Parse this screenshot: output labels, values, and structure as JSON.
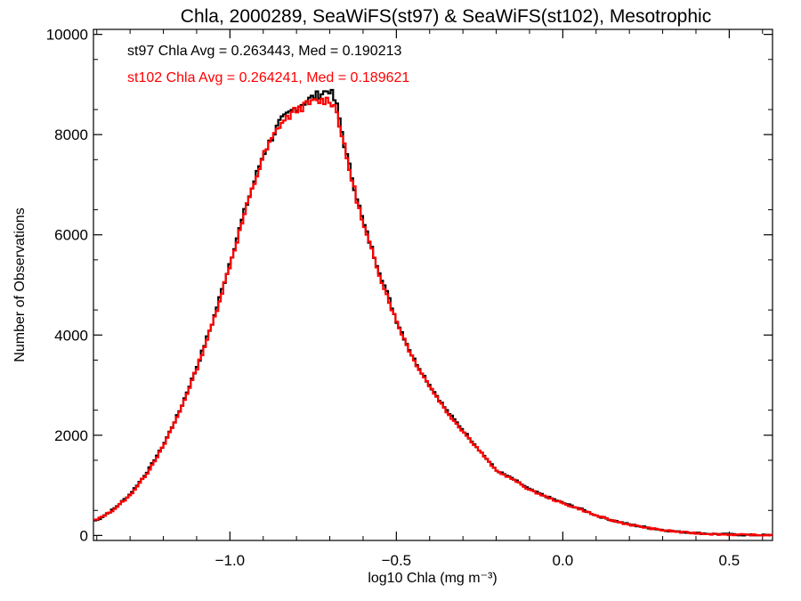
{
  "chart_data": {
    "type": "line",
    "title": "Chla, 2000289, SeaWiFS(st97) & SeaWiFS(st102), Mesotrophic",
    "xlabel": "log10 Chla (mg m⁻³)",
    "ylabel": "Number of Observations",
    "xlim": [
      -1.41,
      0.63
    ],
    "ylim": [
      -100,
      10100
    ],
    "x_ticks": [
      -1.0,
      -0.5,
      0.0,
      0.5
    ],
    "x_tick_labels": [
      "−1.0",
      "−0.5",
      "0.0",
      "0.5"
    ],
    "y_ticks": [
      0,
      2000,
      4000,
      6000,
      8000,
      10000
    ],
    "y_tick_labels": [
      "0",
      "2000",
      "4000",
      "6000",
      "8000",
      "10000"
    ],
    "grid": false,
    "annotations": [
      {
        "text": "st97 Chla Avg = 0.263443, Med = 0.190213",
        "color": "#000000"
      },
      {
        "text": "st102 Chla Avg = 0.264241, Med = 0.189621",
        "color": "#ff0000"
      }
    ],
    "step_type": "histogram",
    "series": [
      {
        "name": "st97",
        "color": "#000000",
        "x": [
          -1.4,
          -1.35,
          -1.3,
          -1.25,
          -1.2,
          -1.15,
          -1.1,
          -1.05,
          -1.0,
          -0.95,
          -0.9,
          -0.85,
          -0.8,
          -0.75,
          -0.7,
          -0.68,
          -0.65,
          -0.6,
          -0.55,
          -0.5,
          -0.45,
          -0.4,
          -0.35,
          -0.3,
          -0.25,
          -0.2,
          -0.15,
          -0.1,
          -0.05,
          0.0,
          0.05,
          0.1,
          0.15,
          0.2,
          0.25,
          0.3,
          0.35,
          0.4,
          0.45,
          0.5,
          0.55,
          0.6
        ],
        "y": [
          300,
          520,
          820,
          1250,
          1800,
          2500,
          3350,
          4300,
          5450,
          6600,
          7600,
          8250,
          8550,
          8750,
          8900,
          8600,
          7600,
          6250,
          5250,
          4300,
          3550,
          3000,
          2500,
          2100,
          1700,
          1300,
          1130,
          920,
          780,
          650,
          540,
          400,
          300,
          220,
          160,
          110,
          70,
          50,
          30,
          20,
          10,
          5
        ]
      },
      {
        "name": "st102",
        "color": "#ff0000",
        "x": [
          -1.4,
          -1.35,
          -1.3,
          -1.25,
          -1.2,
          -1.15,
          -1.1,
          -1.05,
          -1.0,
          -0.95,
          -0.9,
          -0.85,
          -0.8,
          -0.75,
          -0.7,
          -0.68,
          -0.65,
          -0.6,
          -0.55,
          -0.5,
          -0.45,
          -0.4,
          -0.35,
          -0.3,
          -0.25,
          -0.2,
          -0.15,
          -0.1,
          -0.05,
          0.0,
          0.05,
          0.1,
          0.15,
          0.2,
          0.25,
          0.3,
          0.35,
          0.4,
          0.45,
          0.5,
          0.55,
          0.6
        ],
        "y": [
          310,
          510,
          800,
          1230,
          1780,
          2480,
          3320,
          4270,
          5400,
          6550,
          7570,
          8200,
          8500,
          8650,
          8700,
          8500,
          7550,
          6200,
          5200,
          4280,
          3530,
          2980,
          2480,
          2080,
          1690,
          1290,
          1120,
          910,
          770,
          640,
          530,
          395,
          295,
          215,
          155,
          105,
          68,
          48,
          28,
          18,
          9,
          4
        ]
      }
    ]
  }
}
